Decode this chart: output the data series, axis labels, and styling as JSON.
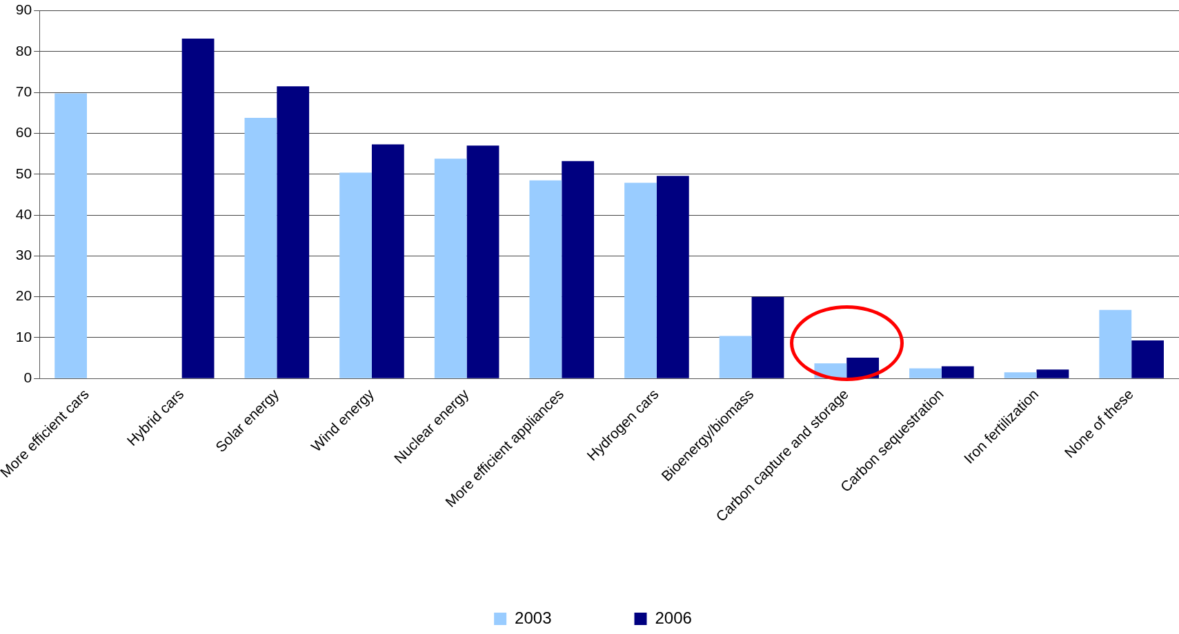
{
  "chart_data": {
    "type": "bar",
    "categories": [
      "More efficient cars",
      "Hybrid cars",
      "Solar energy",
      "Wind energy",
      "Nuclear energy",
      "More efficient appliances",
      "Hydrogen cars",
      "Bioenergy/biomass",
      "Carbon capture and storage",
      "Carbon sequestration",
      "Iron fertilization",
      "None of these"
    ],
    "series": [
      {
        "name": "2003",
        "color": "#99ccff",
        "values": [
          69.8,
          null,
          63.8,
          50.4,
          53.8,
          48.5,
          47.9,
          10.4,
          3.7,
          2.5,
          1.5,
          16.8
        ]
      },
      {
        "name": "2006",
        "color": "#000080",
        "values": [
          null,
          83.2,
          71.5,
          57.3,
          57.0,
          53.2,
          49.6,
          20.0,
          5.1,
          3.0,
          2.2,
          9.3
        ]
      }
    ],
    "ylim": [
      0,
      90
    ],
    "yticks": [
      0,
      10,
      20,
      30,
      40,
      50,
      60,
      70,
      80,
      90
    ],
    "grid": "y",
    "legend": "bottom"
  }
}
